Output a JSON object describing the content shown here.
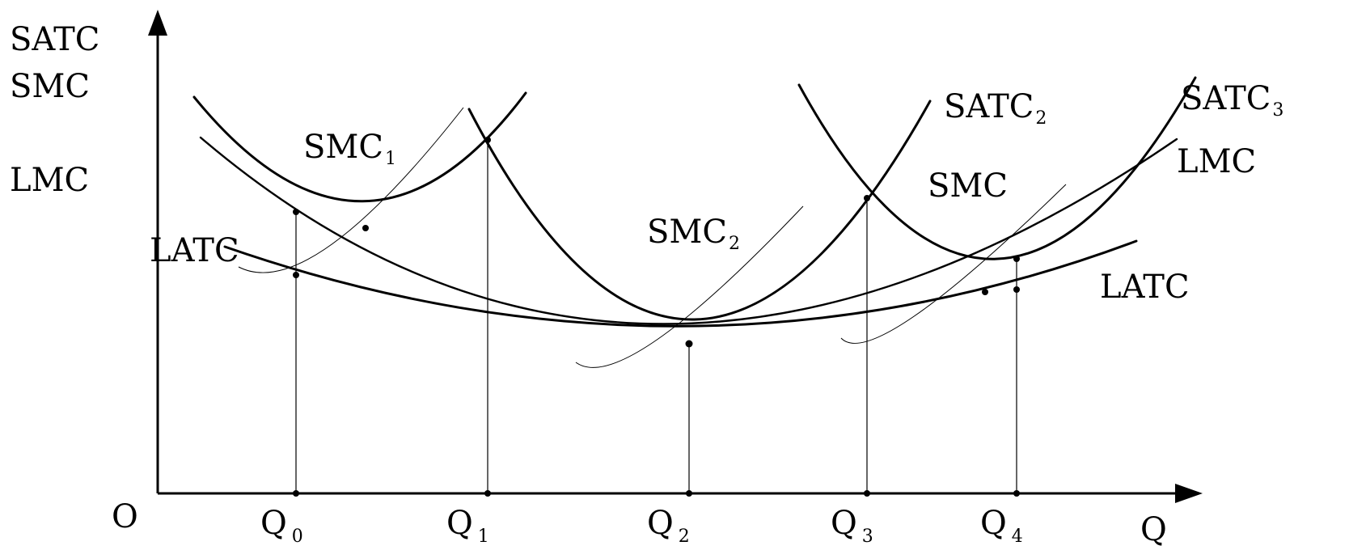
{
  "axes": {
    "y_label_lines": [
      "SATC",
      "SMC",
      "LMC"
    ],
    "origin": "O",
    "x_label": "Q"
  },
  "quantities": [
    {
      "base": "Q",
      "sub": "0"
    },
    {
      "base": "Q",
      "sub": "1"
    },
    {
      "base": "Q",
      "sub": "2"
    },
    {
      "base": "Q",
      "sub": "3"
    },
    {
      "base": "Q",
      "sub": "4"
    }
  ],
  "curves": {
    "satc1": {
      "base": "",
      "sub": ""
    },
    "smc1": {
      "base": "SMC",
      "sub": "1"
    },
    "smc2": {
      "base": "SMC",
      "sub": "2"
    },
    "satc2": {
      "base": "SATC",
      "sub": "2"
    },
    "satc3": {
      "base": "SATC",
      "sub": "3"
    },
    "smc3": {
      "base": "SMC",
      "sub": ""
    },
    "lmc": {
      "base": "LMC",
      "sub": ""
    },
    "latc_left": {
      "base": "LATC",
      "sub": ""
    },
    "latc_right": {
      "base": "LATC",
      "sub": ""
    }
  }
}
